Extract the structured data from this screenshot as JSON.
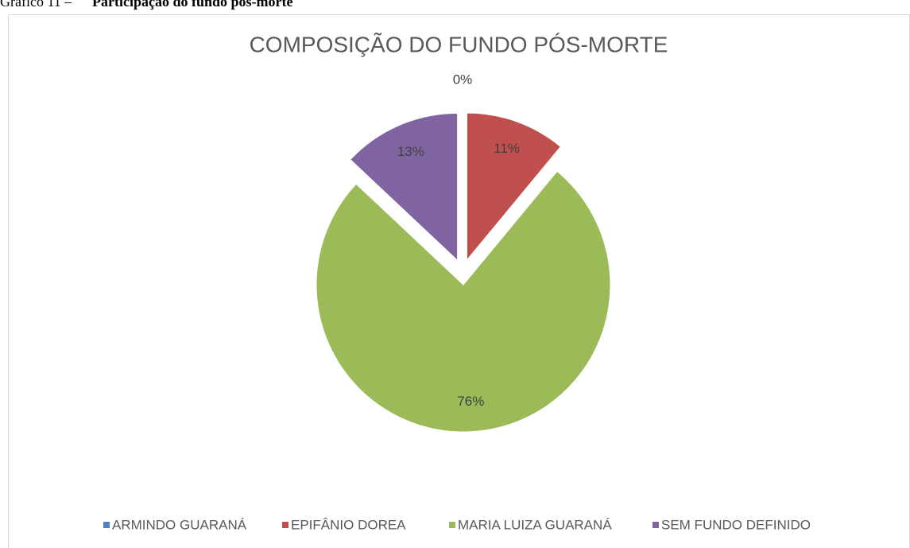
{
  "caption": {
    "label": "Gráfico 11 –",
    "text": "Participação do fundo pós-morte"
  },
  "chart_data": {
    "type": "pie",
    "title": "COMPOSIÇÃO DO FUNDO PÓS-MORTE",
    "categories": [
      "ARMINDO GUARANÁ",
      "EPIFÂNIO DOREA",
      "MARIA LUIZA GUARANÁ",
      "SEM FUNDO DEFINIDO"
    ],
    "values": [
      0,
      11,
      76,
      13
    ],
    "value_labels": [
      "0%",
      "11%",
      "76%",
      "13%"
    ],
    "colors": [
      "#4f81bd",
      "#c0504d",
      "#9bbb59",
      "#8064a2"
    ],
    "legend": "bottom"
  }
}
